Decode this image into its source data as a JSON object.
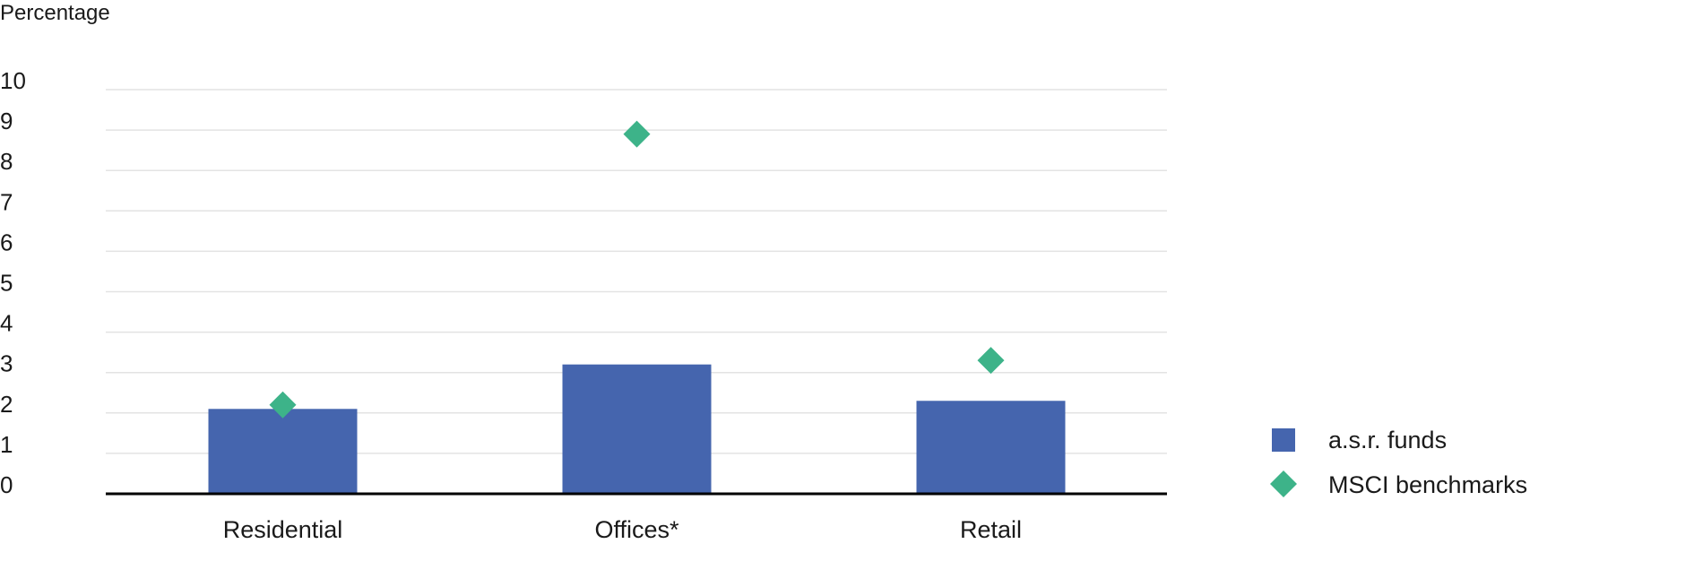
{
  "chart_data": {
    "type": "bar",
    "ylabel": "Percentage",
    "ylim": [
      0,
      10
    ],
    "yticks": [
      "0",
      "1",
      "2",
      "3",
      "4",
      "5",
      "6",
      "7",
      "8",
      "9",
      "10"
    ],
    "categories": [
      "Residential",
      "Offices*",
      "Retail"
    ],
    "grid": true,
    "legend_position": "right",
    "series": [
      {
        "name": "a.s.r. funds",
        "kind": "bar",
        "color": "#4565ae",
        "values": [
          2.1,
          3.2,
          2.3
        ]
      },
      {
        "name": "MSCI benchmarks",
        "kind": "marker",
        "marker": "diamond",
        "color": "#3db389",
        "values": [
          2.2,
          8.9,
          3.3
        ]
      }
    ]
  }
}
